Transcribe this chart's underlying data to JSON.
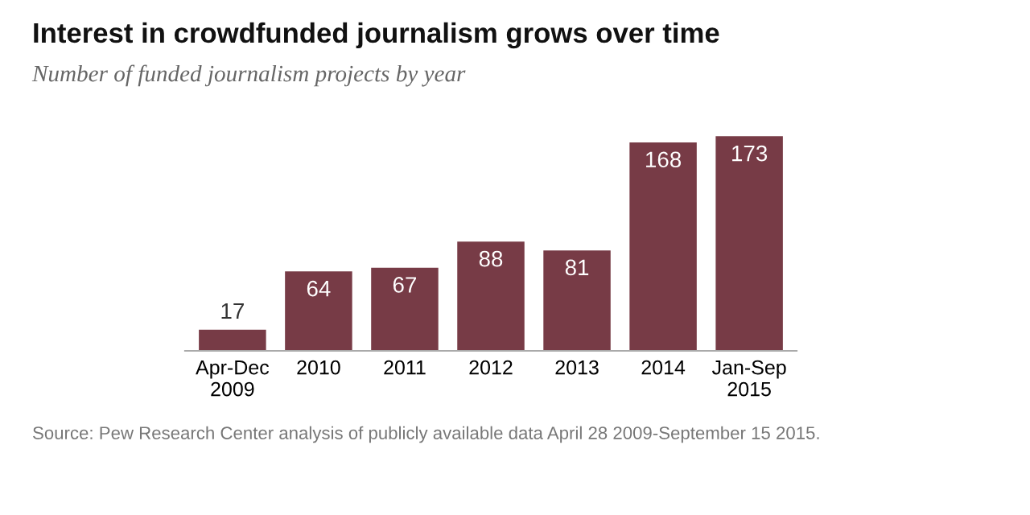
{
  "chart_data": {
    "type": "bar",
    "title": "Interest in crowdfunded journalism grows over time",
    "subtitle": "Number of funded journalism projects by year",
    "categories": [
      "Apr-Dec\n2009",
      "2010",
      "2011",
      "2012",
      "2013",
      "2014",
      "Jan-Sep\n2015"
    ],
    "values": [
      17,
      64,
      67,
      88,
      81,
      168,
      173
    ],
    "color": "#773b46",
    "data_labels": true,
    "grid": false,
    "annotations": [
      "Source: Pew Research Center analysis of publicly available data April 28 2009-September 15 2015."
    ]
  }
}
